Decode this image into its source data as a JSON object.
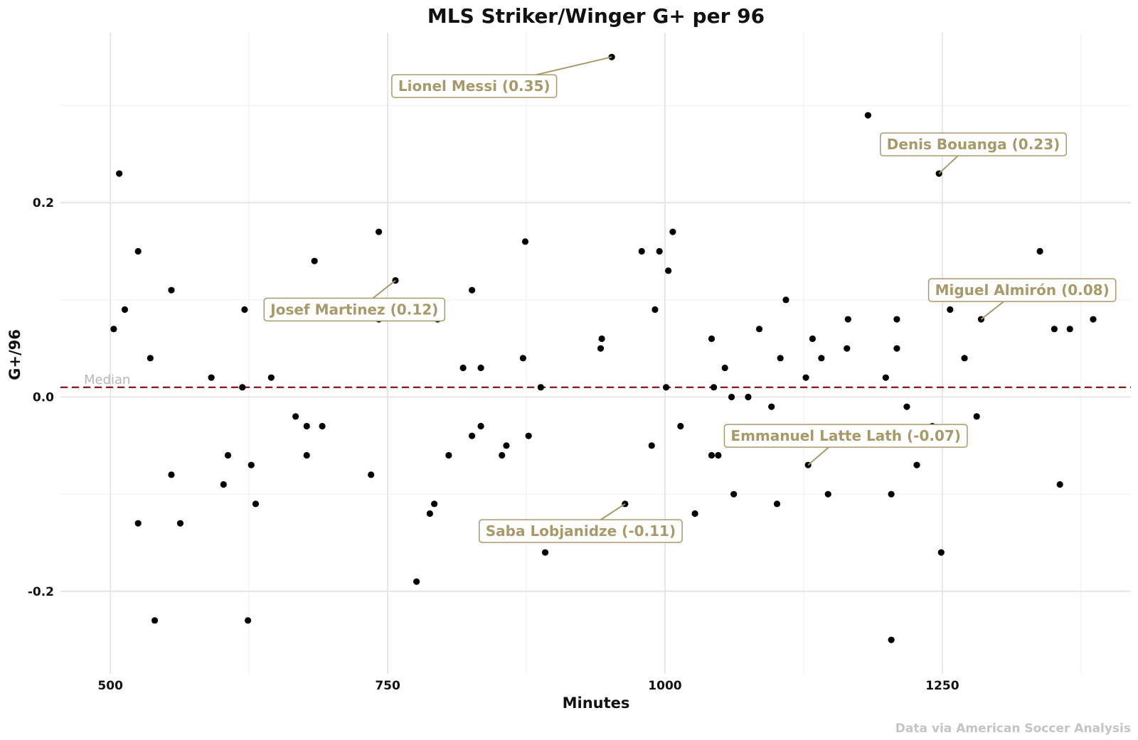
{
  "chart_data": {
    "type": "scatter",
    "title": "MLS Striker/Winger G+ per 96",
    "xlabel": "Minutes",
    "ylabel": "G+/96",
    "xlim": [
      455,
      1420
    ],
    "ylim": [
      -0.285,
      0.375
    ],
    "x_ticks": [
      500,
      750,
      1000,
      1250
    ],
    "x_tick_labels": [
      "500",
      "750",
      "1000",
      "1250"
    ],
    "y_ticks": [
      -0.2,
      0.0,
      0.2
    ],
    "y_tick_labels": [
      "-0.2",
      "0.0",
      "0.2"
    ],
    "y_minor_gridlines": [
      -0.1,
      0.1,
      0.3
    ],
    "x_minor_gridlines": [
      625,
      875,
      1125,
      1375
    ],
    "grid": true,
    "median": {
      "label": "Median",
      "value": 0.01,
      "color": "#8b0000"
    },
    "accent_color": "#a89968",
    "point_color": "#000000",
    "caption": "Data via American Soccer Analysis",
    "points": [
      [
        503,
        0.07
      ],
      [
        508,
        0.23
      ],
      [
        513,
        0.09
      ],
      [
        525,
        0.15
      ],
      [
        525,
        -0.13
      ],
      [
        536,
        0.04
      ],
      [
        540,
        -0.23
      ],
      [
        555,
        0.11
      ],
      [
        555,
        -0.08
      ],
      [
        563,
        -0.13
      ],
      [
        591,
        0.02
      ],
      [
        602,
        -0.09
      ],
      [
        606,
        -0.06
      ],
      [
        619,
        0.01
      ],
      [
        621,
        0.09
      ],
      [
        624,
        -0.23
      ],
      [
        627,
        -0.07
      ],
      [
        631,
        -0.11
      ],
      [
        645,
        0.02
      ],
      [
        667,
        -0.02
      ],
      [
        677,
        -0.03
      ],
      [
        677,
        -0.06
      ],
      [
        684,
        0.14
      ],
      [
        691,
        -0.03
      ],
      [
        735,
        -0.08
      ],
      [
        742,
        0.17
      ],
      [
        742,
        0.08
      ],
      [
        757,
        0.12
      ],
      [
        776,
        -0.19
      ],
      [
        788,
        -0.12
      ],
      [
        792,
        -0.11
      ],
      [
        795,
        0.08
      ],
      [
        805,
        -0.06
      ],
      [
        818,
        0.03
      ],
      [
        826,
        0.11
      ],
      [
        826,
        -0.04
      ],
      [
        834,
        0.03
      ],
      [
        834,
        -0.03
      ],
      [
        853,
        -0.06
      ],
      [
        857,
        -0.05
      ],
      [
        872,
        0.04
      ],
      [
        874,
        0.16
      ],
      [
        877,
        -0.04
      ],
      [
        888,
        0.01
      ],
      [
        892,
        -0.16
      ],
      [
        942,
        0.05
      ],
      [
        943,
        0.06
      ],
      [
        952,
        0.35
      ],
      [
        964,
        -0.11
      ],
      [
        979,
        0.15
      ],
      [
        988,
        -0.05
      ],
      [
        991,
        0.09
      ],
      [
        995,
        0.15
      ],
      [
        1001,
        0.01
      ],
      [
        1003,
        0.13
      ],
      [
        1007,
        0.17
      ],
      [
        1014,
        -0.03
      ],
      [
        1027,
        -0.12
      ],
      [
        1042,
        0.06
      ],
      [
        1042,
        -0.06
      ],
      [
        1044,
        0.01
      ],
      [
        1048,
        -0.06
      ],
      [
        1054,
        0.03
      ],
      [
        1060,
        0.0
      ],
      [
        1062,
        -0.1
      ],
      [
        1075,
        0.0
      ],
      [
        1085,
        0.07
      ],
      [
        1096,
        -0.01
      ],
      [
        1101,
        -0.11
      ],
      [
        1104,
        0.04
      ],
      [
        1109,
        0.1
      ],
      [
        1127,
        0.02
      ],
      [
        1129,
        -0.07
      ],
      [
        1133,
        0.06
      ],
      [
        1141,
        0.04
      ],
      [
        1147,
        -0.1
      ],
      [
        1164,
        0.05
      ],
      [
        1165,
        0.08
      ],
      [
        1183,
        0.29
      ],
      [
        1199,
        0.02
      ],
      [
        1204,
        -0.25
      ],
      [
        1204,
        -0.1
      ],
      [
        1209,
        0.05
      ],
      [
        1209,
        0.08
      ],
      [
        1218,
        -0.01
      ],
      [
        1227,
        -0.07
      ],
      [
        1241,
        -0.03
      ],
      [
        1247,
        0.23
      ],
      [
        1249,
        -0.16
      ],
      [
        1257,
        0.09
      ],
      [
        1270,
        0.04
      ],
      [
        1281,
        -0.02
      ],
      [
        1285,
        0.08
      ],
      [
        1338,
        0.15
      ],
      [
        1351,
        0.07
      ],
      [
        1356,
        -0.09
      ],
      [
        1365,
        0.07
      ],
      [
        1386,
        0.08
      ]
    ],
    "annotations": [
      {
        "label": "Lionel Messi (0.35)",
        "x": 952,
        "y": 0.35,
        "lx": 828,
        "ly": 0.32
      },
      {
        "label": "Denis Bouanga (0.23)",
        "x": 1247,
        "y": 0.23,
        "lx": 1278,
        "ly": 0.26
      },
      {
        "label": "Josef Martinez (0.12)",
        "x": 757,
        "y": 0.12,
        "lx": 720,
        "ly": 0.09
      },
      {
        "label": "Miguel Almirón (0.08)",
        "x": 1285,
        "y": 0.08,
        "lx": 1322,
        "ly": 0.11
      },
      {
        "label": "Emmanuel Latte Lath (-0.07)",
        "x": 1129,
        "y": -0.07,
        "lx": 1163,
        "ly": -0.04
      },
      {
        "label": "Saba Lobjanidze (-0.11)",
        "x": 964,
        "y": -0.11,
        "lx": 924,
        "ly": -0.138
      }
    ]
  }
}
